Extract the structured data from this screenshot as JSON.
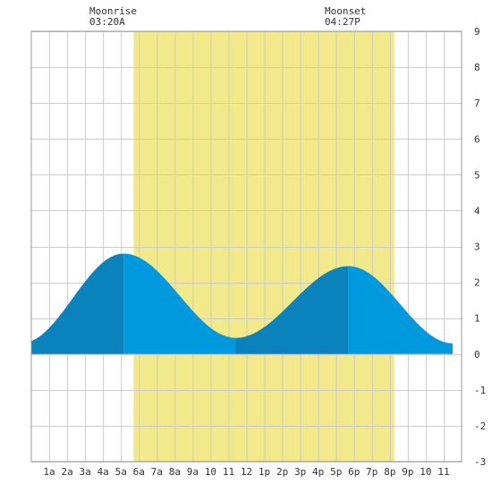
{
  "chart_data": {
    "type": "area",
    "moon_events": [
      {
        "label": "Moonrise",
        "time": "03:20A",
        "hour": 3.33
      },
      {
        "label": "Moonset",
        "time": "04:27P",
        "hour": 16.45
      }
    ],
    "daylight_hours": [
      5.7,
      20.25
    ],
    "x_domain": [
      0,
      24
    ],
    "ylim": [
      -3,
      9
    ],
    "y_ticks": [
      9,
      8,
      7,
      6,
      5,
      4,
      3,
      2,
      1,
      0,
      -1,
      -2,
      -3
    ],
    "x_tick_labels": [
      "1a",
      "2a",
      "3a",
      "4a",
      "5a",
      "6a",
      "7a",
      "8a",
      "9a",
      "10",
      "11",
      "12",
      "1p",
      "2p",
      "3p",
      "4p",
      "5p",
      "6p",
      "7p",
      "8p",
      "9p",
      "10",
      "11"
    ],
    "x_tick_hours": [
      1,
      2,
      3,
      4,
      5,
      6,
      7,
      8,
      9,
      10,
      11,
      12,
      13,
      14,
      15,
      16,
      17,
      18,
      19,
      20,
      21,
      22,
      23
    ],
    "tide_extremes": [
      {
        "type": "low",
        "hour": -0.55,
        "height": 0.3
      },
      {
        "type": "high",
        "hour": 5.15,
        "height": 2.8
      },
      {
        "type": "low",
        "hour": 11.4,
        "height": 0.45
      },
      {
        "type": "high",
        "hour": 17.7,
        "height": 2.45
      },
      {
        "type": "low",
        "hour": 23.5,
        "height": 0.3
      }
    ],
    "grid": true,
    "colors": {
      "daylight": "#f2e98a",
      "tide_rising": "#0a82bc",
      "tide_falling": "#0099dd",
      "grid": "#cccccc",
      "frame": "#999999",
      "background": "#ffffff"
    }
  }
}
